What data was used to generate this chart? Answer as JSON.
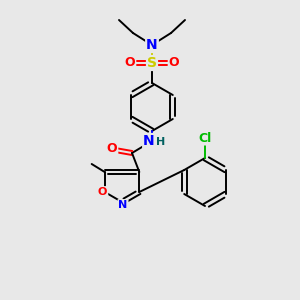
{
  "bg_color": "#e8e8e8",
  "atom_colors": {
    "C": "#000000",
    "N": "#0000ff",
    "O": "#ff0000",
    "S": "#cccc00",
    "Cl": "#00bb00",
    "H": "#006060"
  },
  "bond_color": "#000000",
  "figsize": [
    3.0,
    3.0
  ],
  "dpi": 100
}
